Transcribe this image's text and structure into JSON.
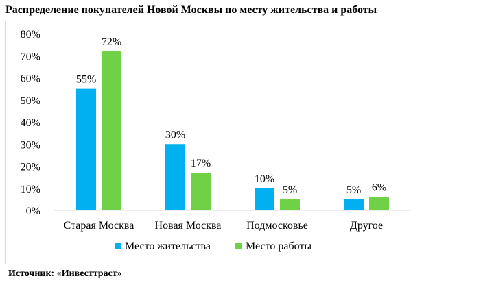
{
  "chart_data": {
    "type": "bar",
    "title": "Распределение покупателей Новой Москвы по месту жительства и работы",
    "categories": [
      "Старая Москва",
      "Новая Москва",
      "Подмосковье",
      "Другое"
    ],
    "series": [
      {
        "name": "Место жительства",
        "values": [
          55,
          30,
          10,
          5
        ],
        "labels": [
          "55%",
          "30%",
          "10%",
          "5%"
        ],
        "color": "#00b0f0"
      },
      {
        "name": "Место работы",
        "values": [
          72,
          17,
          5,
          6
        ],
        "labels": [
          "72%",
          "17%",
          "5%",
          "6%"
        ],
        "color": "#70d147"
      }
    ],
    "yticks": [
      "0%",
      "10%",
      "20%",
      "30%",
      "40%",
      "50%",
      "60%",
      "70%",
      "80%"
    ],
    "ylim": [
      0,
      80
    ],
    "grid": false,
    "legend_position": "bottom"
  },
  "source": "Источник: «Инвесттраст»"
}
